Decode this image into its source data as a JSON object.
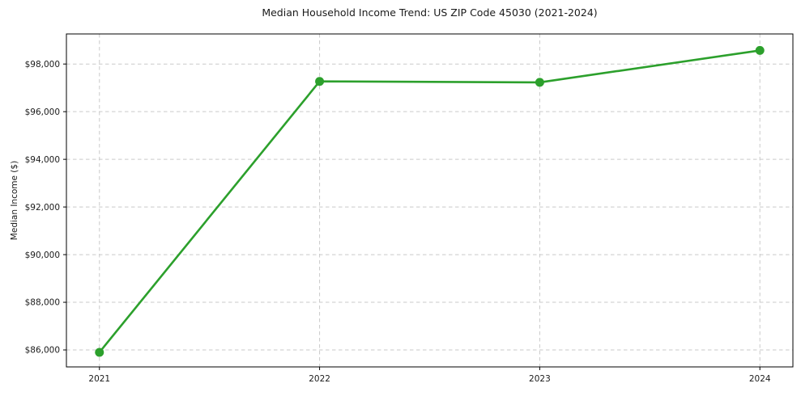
{
  "chart_data": {
    "type": "line",
    "title": "Median Household Income Trend: US ZIP Code 45030 (2021-2024)",
    "xlabel": "",
    "ylabel": "Median Income ($)",
    "x": [
      2021,
      2022,
      2023,
      2024
    ],
    "x_tick_labels": [
      "2021",
      "2022",
      "2023",
      "2024"
    ],
    "values": [
      85900,
      97270,
      97230,
      98570
    ],
    "y_ticks": [
      86000,
      88000,
      90000,
      92000,
      94000,
      96000,
      98000
    ],
    "y_tick_labels": [
      "$86,000",
      "$88,000",
      "$90,000",
      "$92,000",
      "$94,000",
      "$96,000",
      "$98,000"
    ],
    "xlim": [
      2020.85,
      2024.15
    ],
    "ylim": [
      85288,
      99262
    ],
    "grid": true,
    "grid_style": "dashed",
    "legend": false,
    "colors": {
      "line": "#2ca02c",
      "marker": "#2ca02c",
      "grid": "#c9c9c9",
      "axis": "#000000",
      "text": "#1a1a1a",
      "background": "#ffffff"
    }
  }
}
